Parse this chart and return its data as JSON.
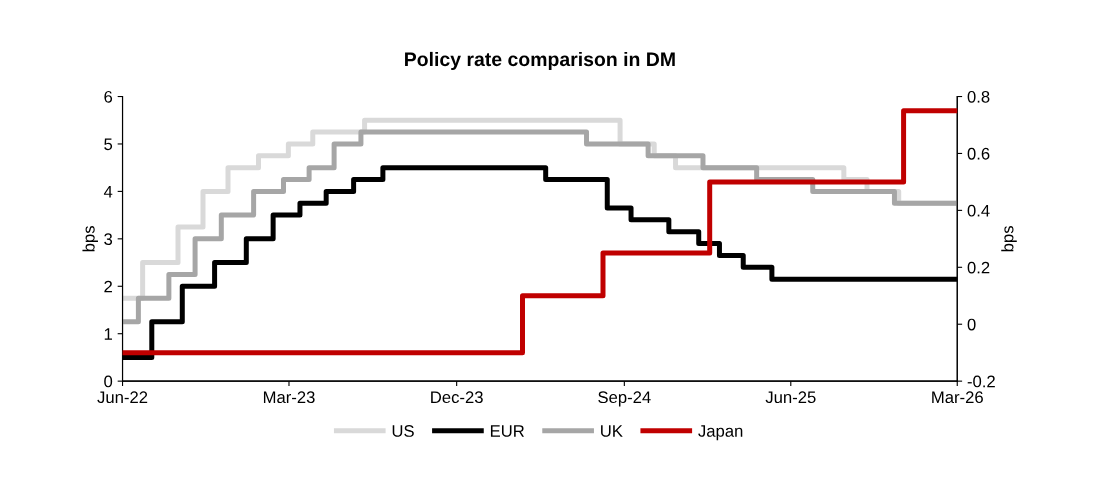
{
  "chart_data": {
    "type": "step",
    "title": "Policy rate comparison in DM",
    "ylabel": "bps",
    "y2label": "bps",
    "xlim": [
      "2022-06-01",
      "2026-03-01"
    ],
    "xticks": [
      {
        "value": "2022-06-01",
        "label": "Jun-22"
      },
      {
        "value": "2023-03-01",
        "label": "Mar-23"
      },
      {
        "value": "2023-12-01",
        "label": "Dec-23"
      },
      {
        "value": "2024-09-01",
        "label": "Sep-24"
      },
      {
        "value": "2025-06-01",
        "label": "Jun-25"
      },
      {
        "value": "2026-03-01",
        "label": "Mar-26"
      }
    ],
    "ylim": [
      0,
      6
    ],
    "yticks": [
      0,
      1,
      2,
      3,
      4,
      5,
      6
    ],
    "y2lim": [
      -0.2,
      0.8
    ],
    "y2ticks": [
      -0.2,
      0,
      0.2,
      0.4,
      0.6,
      0.8
    ],
    "grid": false,
    "legend": "bottom",
    "line_style": "solid",
    "marker": "none",
    "series": [
      {
        "name": "US",
        "color": "#d9d9d9",
        "x": [
          "2022-06-01",
          "2022-07-04",
          "2022-08-31",
          "2022-10-11",
          "2022-11-21",
          "2023-01-10",
          "2023-02-28",
          "2023-04-09",
          "2023-07-03",
          "2024-08-25",
          "2024-10-20",
          "2024-11-24",
          "2025-08-27",
          "2025-10-04",
          "2025-11-25",
          "2026-03-01"
        ],
        "values": [
          1.75,
          2.5,
          3.25,
          4.0,
          4.5,
          4.75,
          5.0,
          5.25,
          5.5,
          5.0,
          4.75,
          4.5,
          4.25,
          4.0,
          3.75,
          3.75
        ]
      },
      {
        "name": "EUR",
        "color": "#000000",
        "x": [
          "2022-06-01",
          "2022-07-19",
          "2022-09-07",
          "2022-10-30",
          "2022-12-21",
          "2023-02-03",
          "2023-03-19",
          "2023-05-01",
          "2023-06-15",
          "2023-08-02",
          "2024-04-25",
          "2024-08-04",
          "2024-09-12",
          "2024-11-13",
          "2025-01-01",
          "2025-02-04",
          "2025-03-15",
          "2025-05-01",
          "2026-03-01"
        ],
        "values": [
          0.5,
          1.25,
          2.0,
          2.5,
          3.0,
          3.5,
          3.75,
          4.0,
          4.25,
          4.5,
          4.25,
          3.65,
          3.4,
          3.15,
          2.9,
          2.65,
          2.4,
          2.15,
          2.15
        ]
      },
      {
        "name": "UK",
        "color": "#a6a6a6",
        "x": [
          "2022-06-01",
          "2022-06-27",
          "2022-08-16",
          "2022-09-28",
          "2022-11-10",
          "2023-01-02",
          "2023-02-20",
          "2023-04-03",
          "2023-05-14",
          "2023-06-27",
          "2024-07-01",
          "2024-10-10",
          "2025-01-08",
          "2025-04-06",
          "2025-07-07",
          "2025-11-18",
          "2026-03-01"
        ],
        "values": [
          1.25,
          1.75,
          2.25,
          3.0,
          3.5,
          4.0,
          4.25,
          4.5,
          5.0,
          5.25,
          5.0,
          4.75,
          4.5,
          4.25,
          4.0,
          3.75,
          3.75
        ]
      },
      {
        "name": "Japan",
        "color": "#c00000",
        "axis": "y2",
        "x": [
          "2022-06-01",
          "2024-03-18",
          "2024-07-28",
          "2025-01-19",
          "2025-12-03",
          "2026-03-01"
        ],
        "values": [
          -0.1,
          0.1,
          0.25,
          0.5,
          0.75,
          0.75
        ]
      }
    ]
  }
}
